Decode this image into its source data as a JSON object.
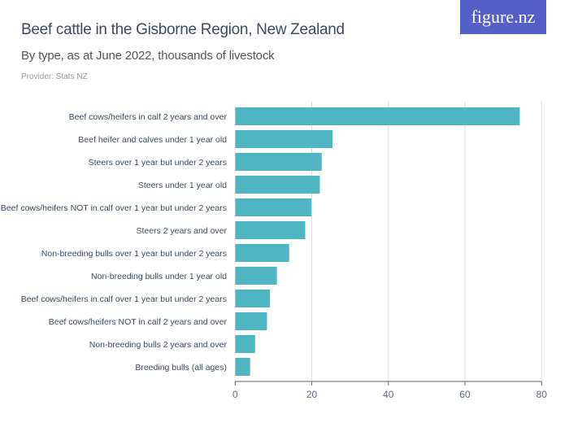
{
  "title": "Beef cattle in the Gisborne Region, New Zealand",
  "subtitle": "By type, as at June 2022, thousands of livestock",
  "provider": "Provider: Stats NZ",
  "logo": "figure.nz",
  "chart_data": {
    "type": "bar",
    "orientation": "horizontal",
    "title": "Beef cattle in the Gisborne Region, New Zealand",
    "subtitle": "By type, as at June 2022, thousands of livestock",
    "categories": [
      "Beef cows/heifers in calf 2 years and over",
      "Beef heifer and calves under 1 year old",
      "Steers over 1 year but under 2 years",
      "Steers under 1 year old",
      "Beef cows/heifers NOT in calf over 1 year but under 2 years",
      "Steers 2 years and over",
      "Non-breeding bulls over 1 year but under 2 years",
      "Non-breeding bulls under 1 year old",
      "Beef cows/heifers in calf over 1 year but under 2 years",
      "Beef cows/heifers NOT in calf 2 years and over",
      "Non-breeding bulls 2 years and over",
      "Breeding bulls (all ages)"
    ],
    "values": [
      74.3,
      25.4,
      22.6,
      22.1,
      19.9,
      18.3,
      14.1,
      10.9,
      9.1,
      8.3,
      5.2,
      3.9
    ],
    "xlim": [
      0,
      80
    ],
    "ticks": [
      0,
      20,
      40,
      60,
      80
    ],
    "grid": true,
    "color": "#4fb6c4"
  }
}
